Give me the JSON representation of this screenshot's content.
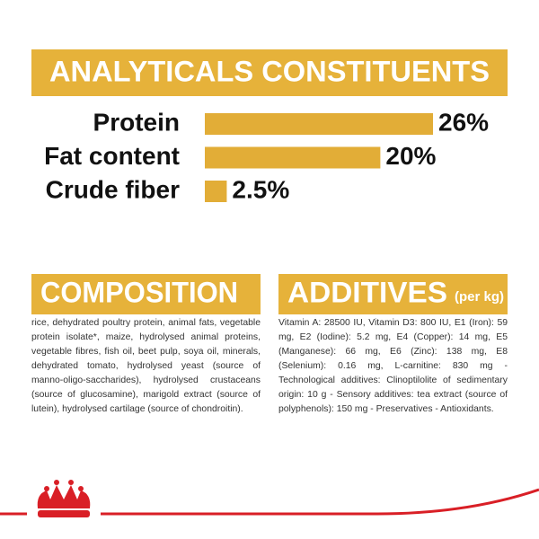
{
  "chart_data": {
    "type": "bar",
    "orientation": "horizontal",
    "title": "ANALYTICALS CONSTITUENTS",
    "categories": [
      "Protein",
      "Fat content",
      "Crude fiber"
    ],
    "values": [
      26,
      20,
      2.5
    ],
    "value_labels": [
      "26%",
      "20%",
      "2.5%"
    ],
    "color": "#e2ad37"
  },
  "composition": {
    "title": "COMPOSITION",
    "text": "rice, dehydrated poultry protein, animal fats, vegetable protein isolate*, maize, hydrolysed animal proteins, vegetable fibres, fish oil, beet pulp, soya oil, minerals, dehydrated tomato, hydrolysed yeast (source of manno-oligo-saccharides), hydrolysed crustaceans (source of glucosamine), marigold extract (source of lutein), hydrolysed cartilage (source of chondroitin)."
  },
  "additives": {
    "title": "ADDITIVES",
    "subtitle": "(per kg)",
    "text": "Vitamin A: 28500 IU, Vitamin D3: 800 IU, E1 (Iron): 59 mg, E2 (Iodine): 5.2 mg, E4 (Copper): 14 mg, E5 (Manganese): 66 mg, E6 (Zinc): 138 mg, E8 (Selenium): 0.16 mg, L-carnitine: 830 mg - Technological additives: Clinoptilolite of sedimentary origin: 10 g - Sensory additives: tea extract (source of polyphenols): 150 mg - Preservatives - Antioxidants."
  }
}
